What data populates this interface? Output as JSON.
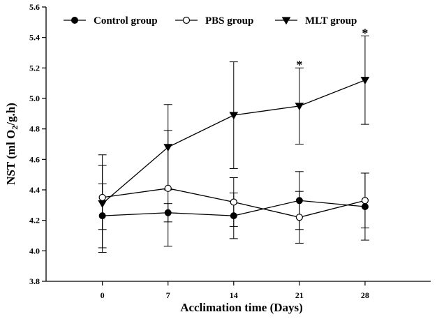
{
  "chart_data": {
    "type": "line",
    "title": "",
    "xlabel": "Acclimation time (Days)",
    "ylabel": "NST (ml O2/g.h)",
    "ylabel_parts": {
      "main": "NST (ml O",
      "sub": "2",
      "tail": "/g.h)"
    },
    "x": [
      0,
      7,
      14,
      21,
      28
    ],
    "x_tick_labels": [
      "0",
      "7",
      "14",
      "21",
      "28"
    ],
    "xlim": [
      -6,
      35
    ],
    "ylim": [
      3.8,
      5.6
    ],
    "y_ticks": [
      3.8,
      4.0,
      4.2,
      4.4,
      4.6,
      4.8,
      5.0,
      5.2,
      5.4,
      5.6
    ],
    "y_tick_labels": [
      "3.8",
      "4.0",
      "4.2",
      "4.4",
      "4.6",
      "4.8",
      "5.0",
      "5.2",
      "5.4",
      "5.6"
    ],
    "grid": false,
    "legend_position": "top",
    "series": [
      {
        "name": "Control group",
        "marker": "filled-circle",
        "values": [
          4.23,
          4.25,
          4.23,
          4.33,
          4.29
        ],
        "errors": [
          0.21,
          0.06,
          0.15,
          0.19,
          0.22
        ]
      },
      {
        "name": "PBS group",
        "marker": "open-circle",
        "values": [
          4.35,
          4.41,
          4.32,
          4.22,
          4.33
        ],
        "errors": [
          0.21,
          0.38,
          0.16,
          0.17,
          0.18
        ]
      },
      {
        "name": "MLT group",
        "marker": "filled-triangle-down",
        "values": [
          4.31,
          4.68,
          4.89,
          4.95,
          5.12
        ],
        "errors": [
          0.32,
          0.28,
          0.35,
          0.25,
          0.29
        ]
      }
    ],
    "annotations": [
      {
        "text": "*",
        "x": 21,
        "y": 5.21
      },
      {
        "text": "*",
        "x": 28,
        "y": 5.42
      }
    ]
  }
}
